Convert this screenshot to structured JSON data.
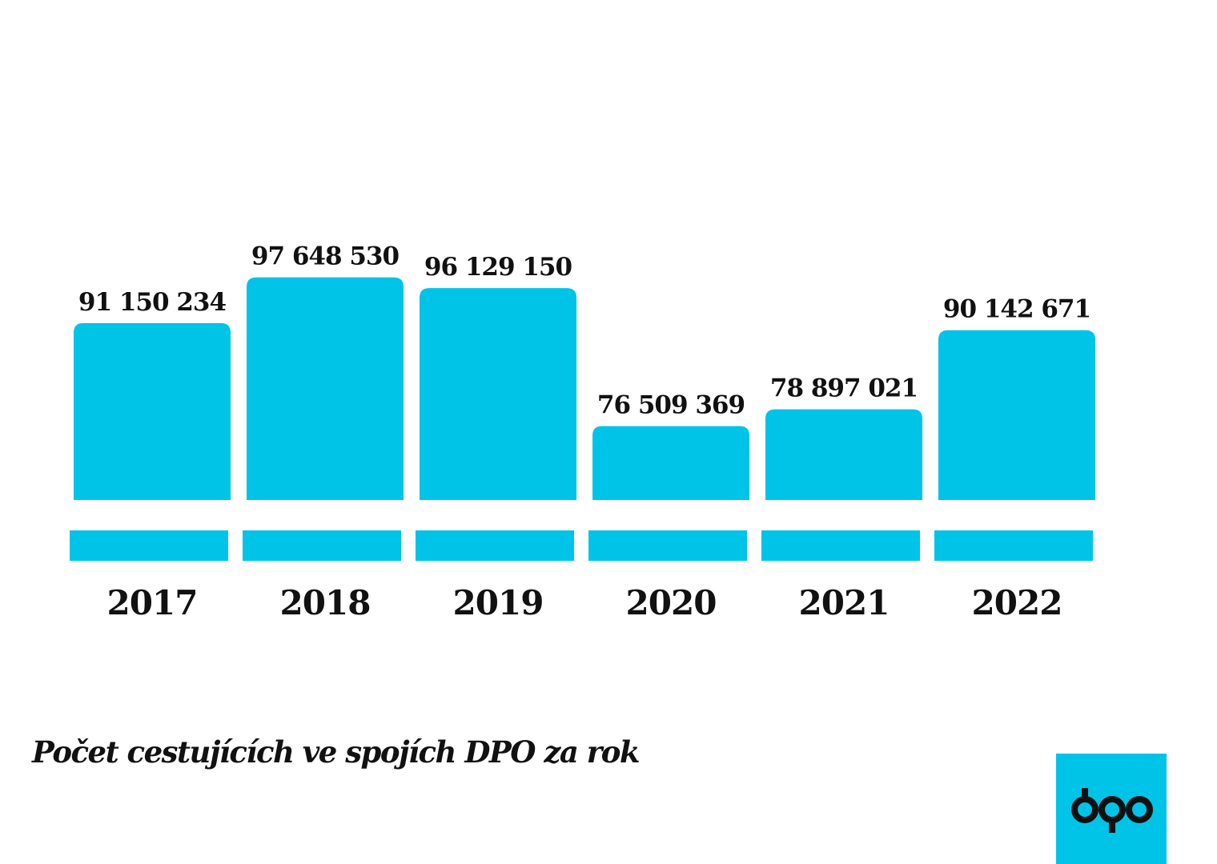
{
  "chart_data": {
    "type": "bar",
    "categories": [
      "2017",
      "2018",
      "2019",
      "2020",
      "2021",
      "2022"
    ],
    "values": [
      91150234,
      97648530,
      96129150,
      76509369,
      78897021,
      90142671
    ],
    "value_labels": [
      "91 150 234",
      "97 648 530",
      "96 129 150",
      "76 509 369",
      "78 897 021",
      "90 142 671"
    ],
    "title": "Počet cestujících ve spojích DPO za rok",
    "xlabel": "",
    "ylabel": "",
    "ylim": [
      60000000,
      100000000
    ],
    "grid": false,
    "bar_color": "#00c3e8"
  },
  "logo": {
    "text": "dpo",
    "color": "#00c3e8"
  }
}
